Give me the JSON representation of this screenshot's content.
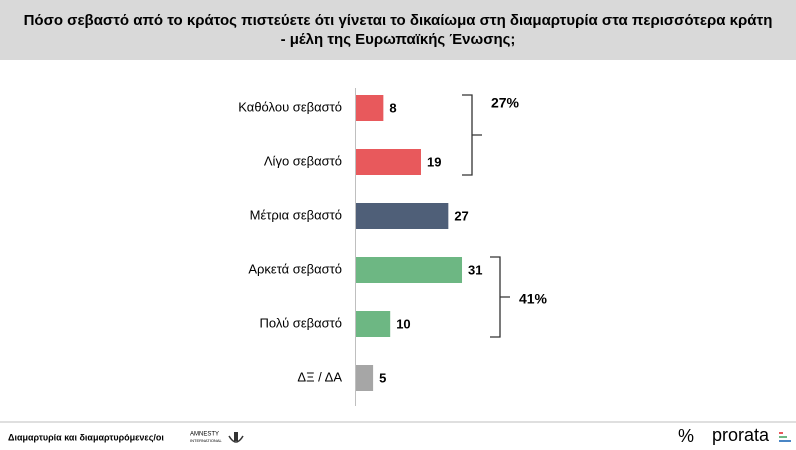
{
  "chart_data": {
    "type": "bar",
    "orientation": "horizontal",
    "title": "Πόσο σεβαστό από το κράτος πιστεύετε ότι γίνεται το δικαίωμα στη διαμαρτυρία στα περισσότερα κράτη - μέλη της Ευρωπαϊκής Ένωσης;",
    "categories": [
      "Καθόλου σεβαστό",
      "Λίγο σεβαστό",
      "Μέτρια σεβαστό",
      "Αρκετά σεβαστό",
      "Πολύ σεβαστό",
      "ΔΞ / ΔΑ"
    ],
    "values": [
      8,
      19,
      27,
      31,
      10,
      5
    ],
    "colors": [
      "#e8595c",
      "#e8595c",
      "#4f5f78",
      "#6db783",
      "#6db783",
      "#a6a6a6"
    ],
    "annotations": [
      "27%",
      "41%"
    ]
  },
  "footer": {
    "text": "Διαμαρτυρία και διαμαρτυρόμενες/οι",
    "logo_line1": "AMNESTY",
    "logo_line2": "INTERNATIONAL",
    "brand": "prorata"
  }
}
